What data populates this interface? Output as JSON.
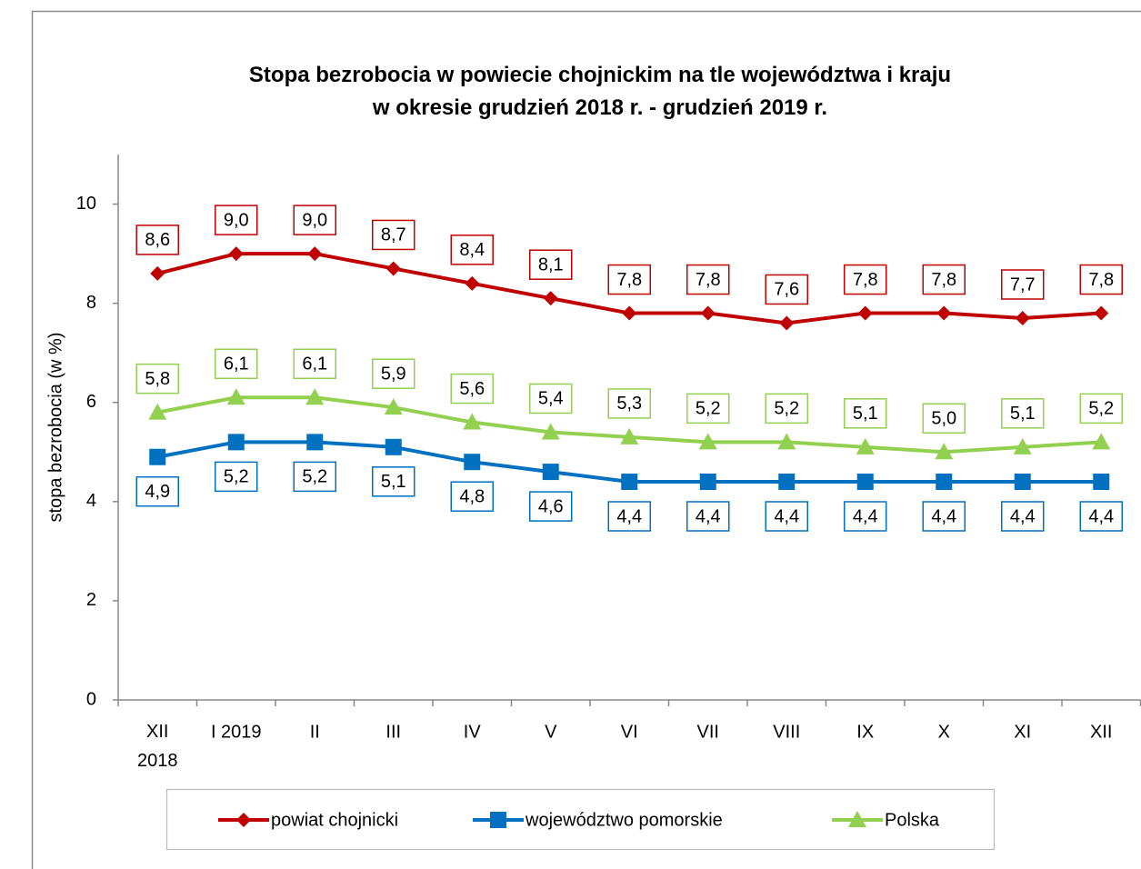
{
  "chart_data": {
    "type": "line",
    "title": "Stopa bezrobocia w powiecie chojnickim na tle województwa i kraju\nw okresie grudzień 2018 r. - grudzień 2019 r.",
    "y_label": "stopa bezrobocia (w %)",
    "categories": [
      "XII\n2018",
      "I 2019",
      "II",
      "III",
      "IV",
      "V",
      "VI",
      "VII",
      "VIII",
      "IX",
      "X",
      "XI",
      "XII"
    ],
    "series": [
      {
        "name": "powiat chojnicki",
        "color": "#c00000",
        "marker": "diamond",
        "label_side": "above",
        "values": [
          8.6,
          9.0,
          9.0,
          8.7,
          8.4,
          8.1,
          7.8,
          7.8,
          7.6,
          7.8,
          7.8,
          7.7,
          7.8
        ],
        "value_labels": [
          "8,6",
          "9,0",
          "9,0",
          "8,7",
          "8,4",
          "8,1",
          "7,8",
          "7,8",
          "7,6",
          "7,8",
          "7,8",
          "7,7",
          "7,8"
        ]
      },
      {
        "name": "województwo pomorskie",
        "color": "#0070c0",
        "marker": "square",
        "label_side": "below",
        "values": [
          4.9,
          5.2,
          5.2,
          5.1,
          4.8,
          4.6,
          4.4,
          4.4,
          4.4,
          4.4,
          4.4,
          4.4,
          4.4
        ],
        "value_labels": [
          "4,9",
          "5,2",
          "5,2",
          "5,1",
          "4,8",
          "4,6",
          "4,4",
          "4,4",
          "4,4",
          "4,4",
          "4,4",
          "4,4",
          "4,4"
        ]
      },
      {
        "name": "Polska",
        "color": "#92d050",
        "marker": "triangle",
        "label_side": "above",
        "values": [
          5.8,
          6.1,
          6.1,
          5.9,
          5.6,
          5.4,
          5.3,
          5.2,
          5.2,
          5.1,
          5.0,
          5.1,
          5.2
        ],
        "value_labels": [
          "5,8",
          "6,1",
          "6,1",
          "5,9",
          "5,6",
          "5,4",
          "5,3",
          "5,2",
          "5,2",
          "5,1",
          "5,0",
          "5,1",
          "5,2"
        ]
      }
    ],
    "ylim": [
      0,
      11
    ],
    "yticks": [
      0,
      2,
      4,
      6,
      8,
      10
    ],
    "grid": false,
    "legend": "bottom"
  }
}
